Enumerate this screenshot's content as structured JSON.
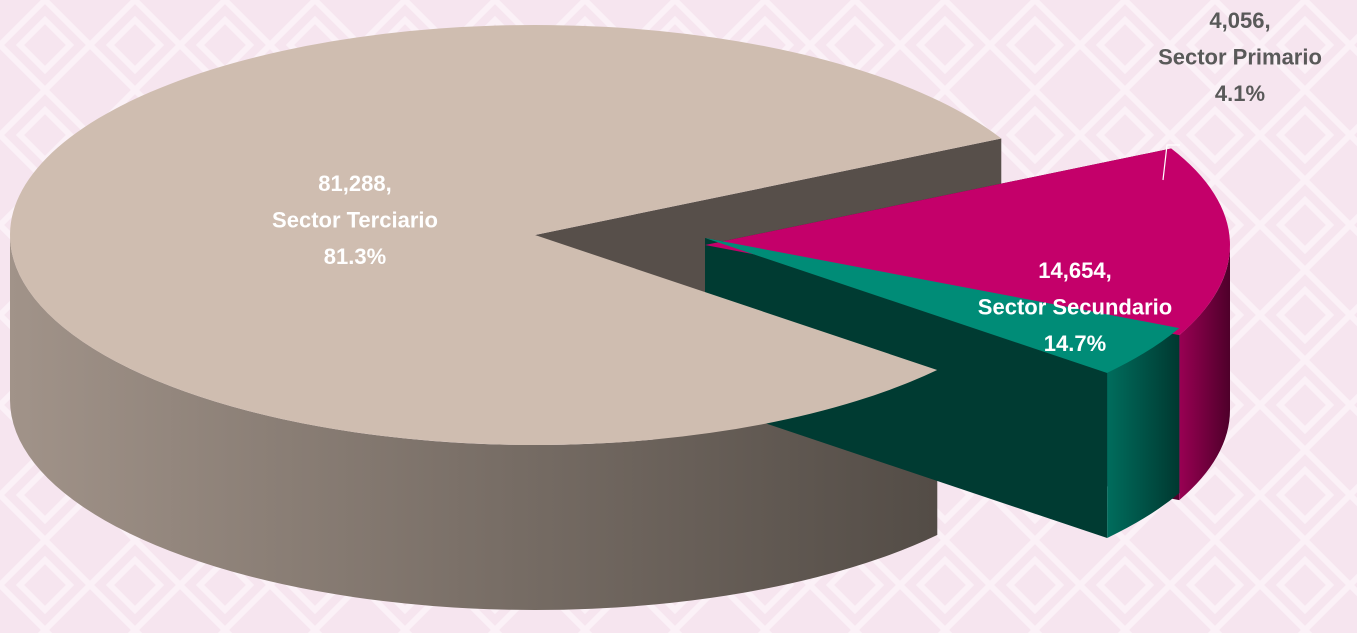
{
  "chart_data": {
    "type": "pie3d",
    "categories": [
      "Sector Terciario",
      "Sector Secundario",
      "Sector Primario"
    ],
    "values": [
      81288,
      14654,
      4056
    ],
    "value_labels": [
      "81,288,",
      "14,654,",
      "4,056,"
    ],
    "percents": [
      81.3,
      14.7,
      4.1
    ],
    "percent_labels": [
      "81.3%",
      "14.7%",
      "4.1%"
    ],
    "colors": [
      "#cfbdb0",
      "#c4006a",
      "#008c77"
    ]
  }
}
